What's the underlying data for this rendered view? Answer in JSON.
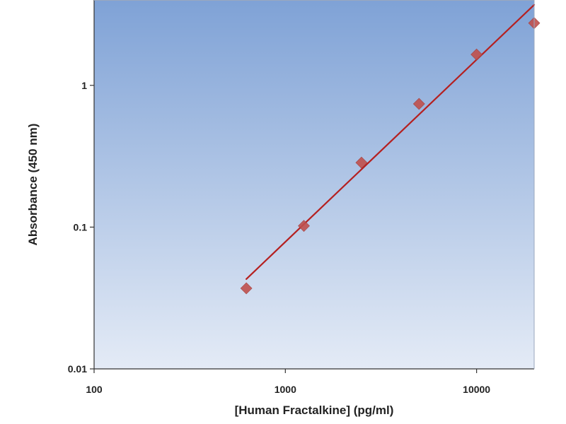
{
  "chart_data": {
    "type": "scatter",
    "xlabel": "[Human Fractalkine] (pg/ml)",
    "ylabel": "Absorbance (450 nm)",
    "xscale": "log",
    "yscale": "log",
    "xlim": [
      100,
      20000
    ],
    "ylim": [
      0.01,
      4
    ],
    "xticks": [
      {
        "value": 100,
        "label": "100"
      },
      {
        "value": 1000,
        "label": "1000"
      },
      {
        "value": 10000,
        "label": "10000"
      }
    ],
    "yticks": [
      {
        "value": 0.01,
        "label": "0.01"
      },
      {
        "value": 0.1,
        "label": "0.1"
      },
      {
        "value": 1,
        "label": "1"
      }
    ],
    "grid": false,
    "legend": "none",
    "points": [
      {
        "x": 625,
        "y": 0.037
      },
      {
        "x": 1250,
        "y": 0.102
      },
      {
        "x": 2500,
        "y": 0.285
      },
      {
        "x": 5000,
        "y": 0.74
      },
      {
        "x": 10000,
        "y": 1.65
      },
      {
        "x": 20000,
        "y": 2.75
      }
    ],
    "fit_line": [
      {
        "x": 625,
        "y": 0.043
      },
      {
        "x": 20000,
        "y": 3.7
      }
    ],
    "colors": {
      "marker": "#c0504d",
      "line": "#b52020",
      "background_top": "#7fa2d6",
      "background_bottom": "#e4ebf6"
    }
  }
}
